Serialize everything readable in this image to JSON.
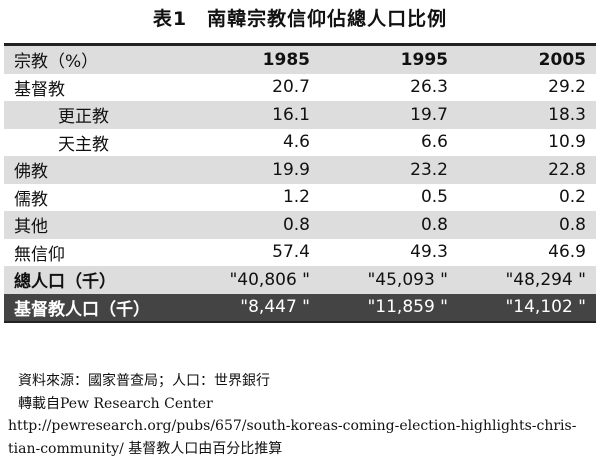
{
  "title": "表1　南韓宗教信仰佔總人口比例",
  "table": {
    "header": [
      "宗教（%）",
      "1985",
      "1995",
      "2005"
    ],
    "rows": [
      [
        "基督教",
        "20.7",
        "26.3",
        "29.2"
      ],
      [
        "更正教",
        "16.1",
        "19.7",
        "18.3"
      ],
      [
        "天主教",
        "4.6",
        "6.6",
        "10.9"
      ],
      [
        "佛教",
        "19.9",
        "23.2",
        "22.8"
      ],
      [
        "儒教",
        "1.2",
        "0.5",
        "0.2"
      ],
      [
        "其他",
        "0.8",
        "0.8",
        "0.8"
      ],
      [
        "無信仰",
        "57.4",
        "49.3",
        "46.9"
      ],
      [
        "總人口（千）",
        "\"40,806 \"",
        "\"45,093 \"",
        "\"48,294 \""
      ],
      [
        "基督教人口（千）",
        "\"8,447 \"",
        "\"11,859 \"",
        "\"14,102 \""
      ]
    ]
  },
  "notes": [
    "資料來源：國家普查局；人口：世界銀行",
    "轉載自Pew Research Center",
    "http://pewresearch.org/pubs/657/south-koreas-coming-election-highlights-chris-",
    "tian-community/  基督教人口由百分比推算"
  ]
}
